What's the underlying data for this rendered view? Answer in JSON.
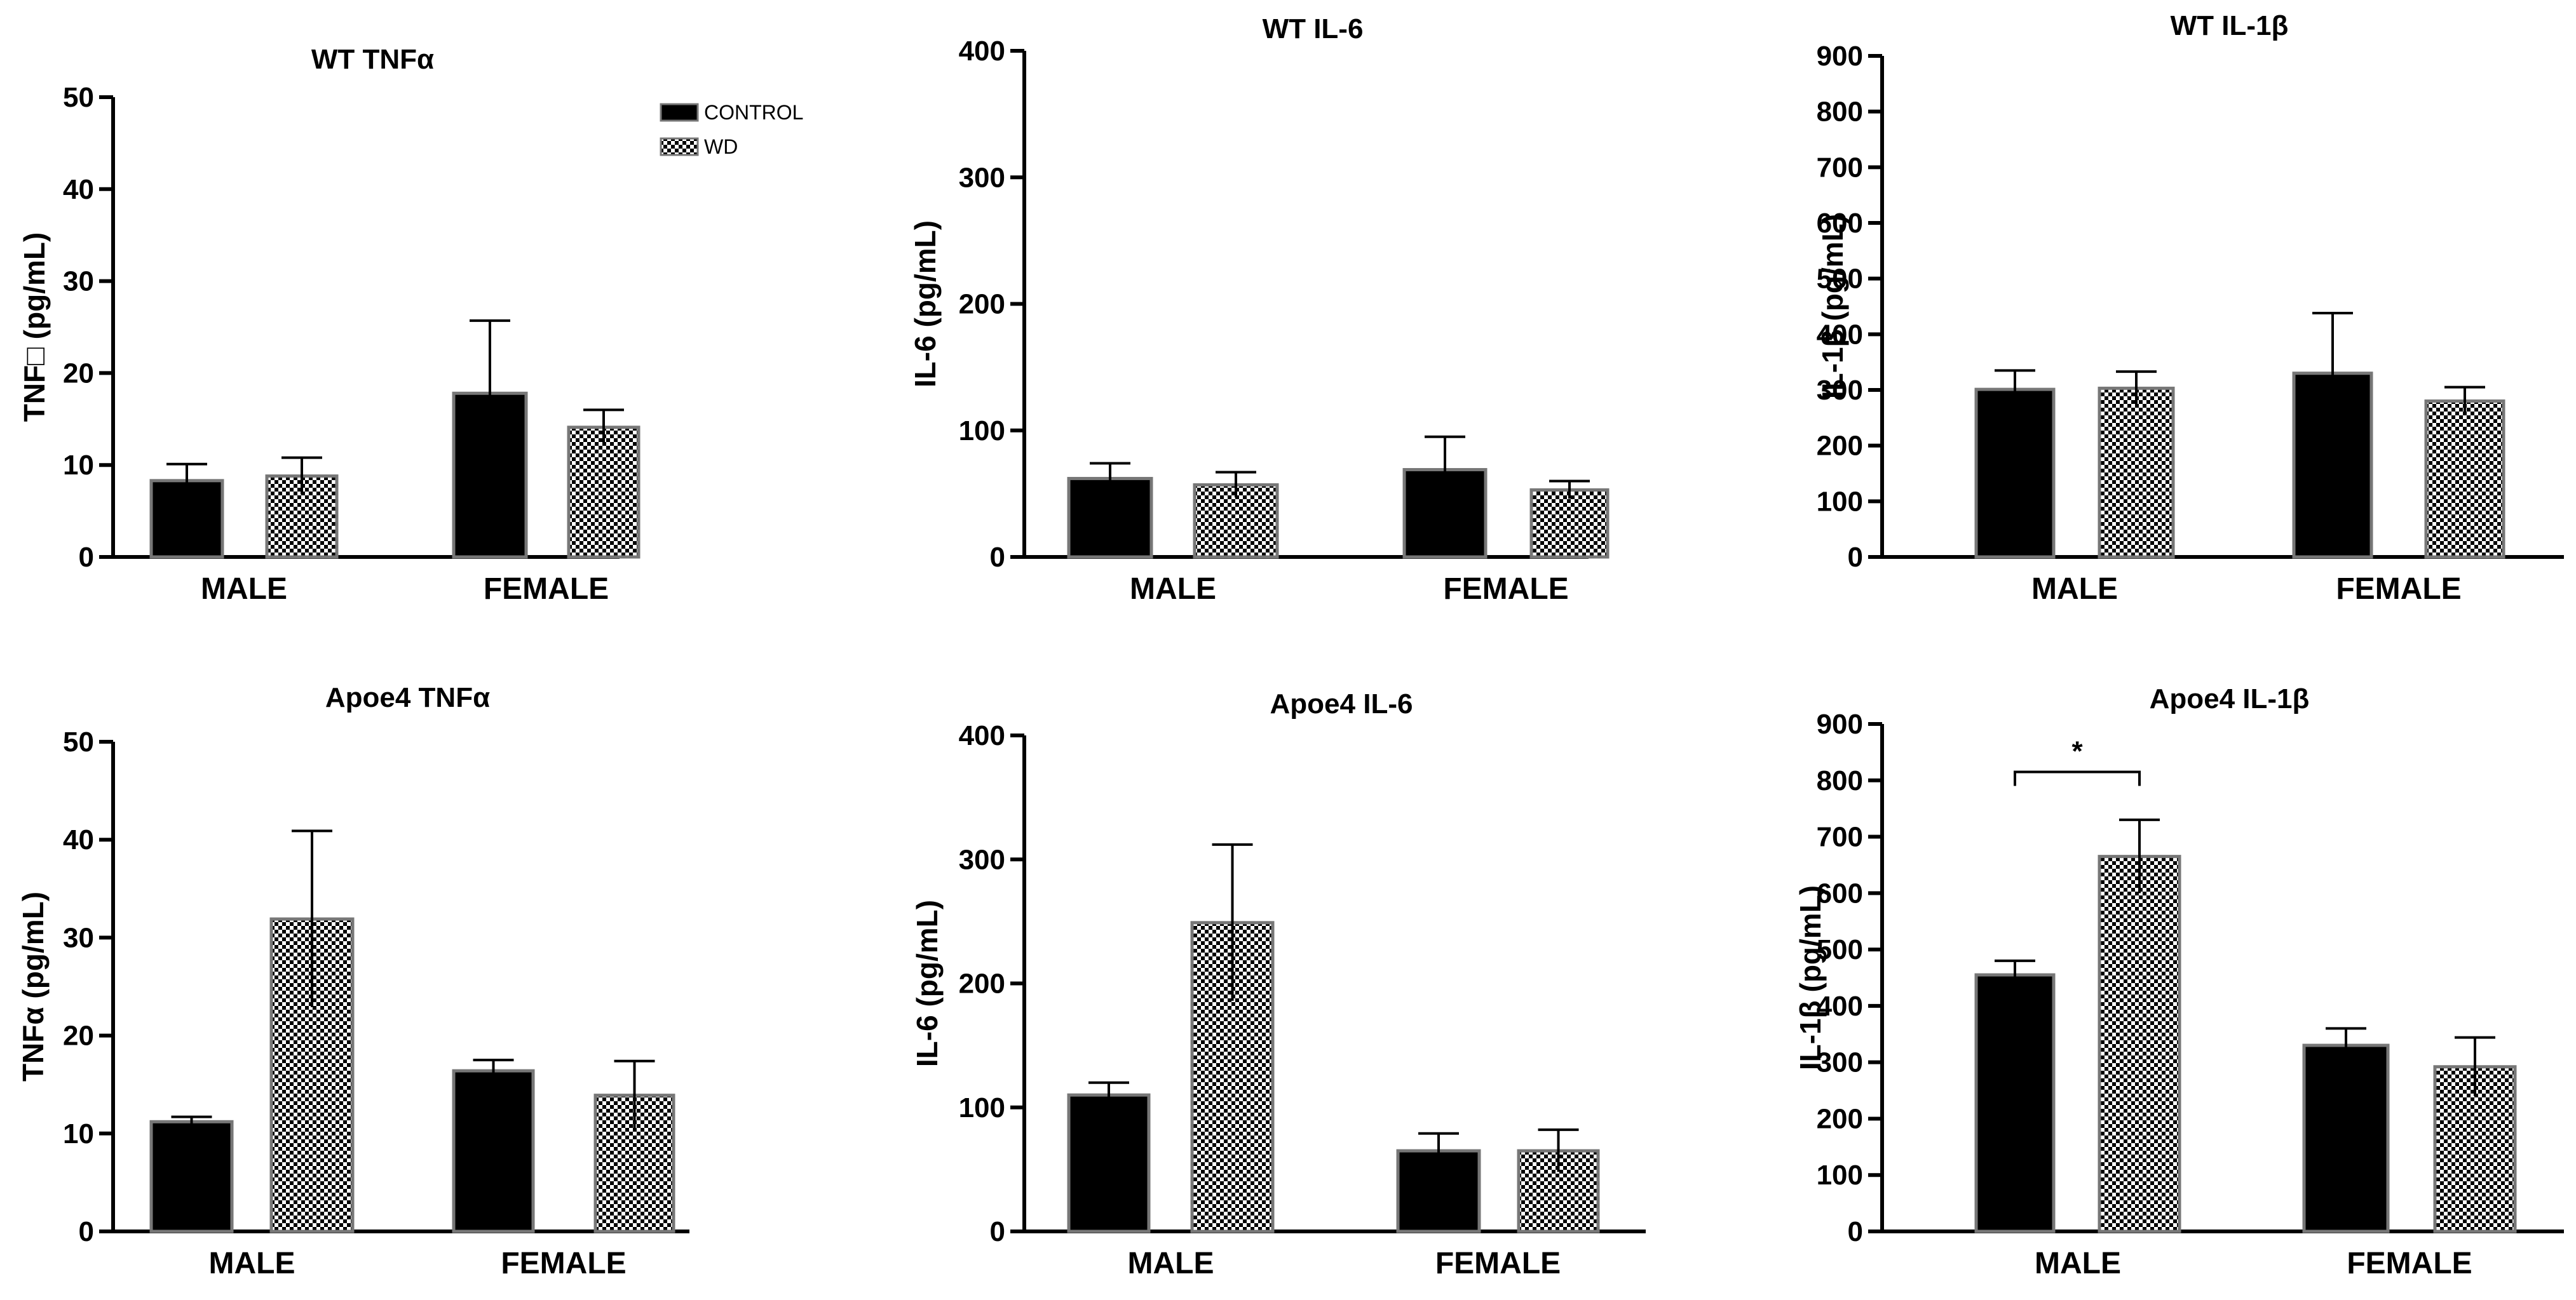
{
  "colors": {
    "control": "#000000",
    "wd_dark": "#000000",
    "wd_light": "#ffffff",
    "axis": "#000000",
    "bar_edge": "#777777"
  },
  "legend": {
    "items": [
      {
        "label": "CONTROL",
        "pattern": "solid"
      },
      {
        "label": "WD",
        "pattern": "checker"
      }
    ]
  },
  "chart_data": [
    {
      "type": "bar",
      "title": "WT TNFα",
      "ylabel": "TNF□ (pg/mL)",
      "ylim": [
        0,
        50
      ],
      "yticks": [
        0,
        10,
        20,
        30,
        40,
        50
      ],
      "categories": [
        "MALE",
        "FEMALE"
      ],
      "series": [
        {
          "name": "CONTROL",
          "values": [
            8.3,
            17.8
          ],
          "errors": [
            1.8,
            7.9
          ]
        },
        {
          "name": "WD",
          "values": [
            8.8,
            14.1
          ],
          "errors": [
            2.0,
            1.9
          ]
        }
      ]
    },
    {
      "type": "bar",
      "title": "WT IL-6",
      "ylabel": "IL-6 (pg/mL)",
      "ylim": [
        0,
        400
      ],
      "yticks": [
        0,
        100,
        200,
        300,
        400
      ],
      "categories": [
        "MALE",
        "FEMALE"
      ],
      "series": [
        {
          "name": "CONTROL",
          "values": [
            62,
            69
          ],
          "errors": [
            12,
            26
          ]
        },
        {
          "name": "WD",
          "values": [
            57,
            53
          ],
          "errors": [
            10,
            7
          ]
        }
      ]
    },
    {
      "type": "bar",
      "title": "WT IL-1β",
      "ylabel": "IL-1β (pg/mL)",
      "ylim": [
        0,
        900
      ],
      "yticks": [
        0,
        100,
        200,
        300,
        400,
        500,
        600,
        700,
        800,
        900
      ],
      "categories": [
        "MALE",
        "FEMALE"
      ],
      "series": [
        {
          "name": "CONTROL",
          "values": [
            301,
            330
          ],
          "errors": [
            34,
            108
          ]
        },
        {
          "name": "WD",
          "values": [
            303,
            280
          ],
          "errors": [
            30,
            25
          ]
        }
      ]
    },
    {
      "type": "bar",
      "title": "Apoe4 TNFα",
      "ylabel": "TNFα (pg/mL)",
      "ylim": [
        0,
        50
      ],
      "yticks": [
        0,
        10,
        20,
        30,
        40,
        50
      ],
      "categories": [
        "MALE",
        "FEMALE"
      ],
      "series": [
        {
          "name": "CONTROL",
          "values": [
            11.2,
            16.4
          ],
          "errors": [
            0.5,
            1.1
          ]
        },
        {
          "name": "WD",
          "values": [
            31.9,
            13.9
          ],
          "errors": [
            9.0,
            3.5
          ]
        }
      ]
    },
    {
      "type": "bar",
      "title": "Apoe4 IL-6",
      "ylabel": "IL-6 (pg/mL)",
      "ylim": [
        0,
        400
      ],
      "yticks": [
        0,
        100,
        200,
        300,
        400
      ],
      "categories": [
        "MALE",
        "FEMALE"
      ],
      "series": [
        {
          "name": "CONTROL",
          "values": [
            110,
            65
          ],
          "errors": [
            10,
            14
          ]
        },
        {
          "name": "WD",
          "values": [
            249,
            65
          ],
          "errors": [
            63,
            17
          ]
        }
      ]
    },
    {
      "type": "bar",
      "title": "Apoe4 IL-1β",
      "ylabel": "IL-1β (pg/mL)",
      "ylim": [
        0,
        900
      ],
      "yticks": [
        0,
        100,
        200,
        300,
        400,
        500,
        600,
        700,
        800,
        900
      ],
      "categories": [
        "MALE",
        "FEMALE"
      ],
      "series": [
        {
          "name": "CONTROL",
          "values": [
            455,
            330
          ],
          "errors": [
            25,
            30
          ]
        },
        {
          "name": "WD",
          "values": [
            665,
            292
          ],
          "errors": [
            65,
            52
          ]
        }
      ]
    }
  ],
  "annotations": [
    {
      "chart": 5,
      "label": "*",
      "category": "MALE",
      "between": [
        "CONTROL",
        "WD"
      ],
      "y": 815
    }
  ]
}
